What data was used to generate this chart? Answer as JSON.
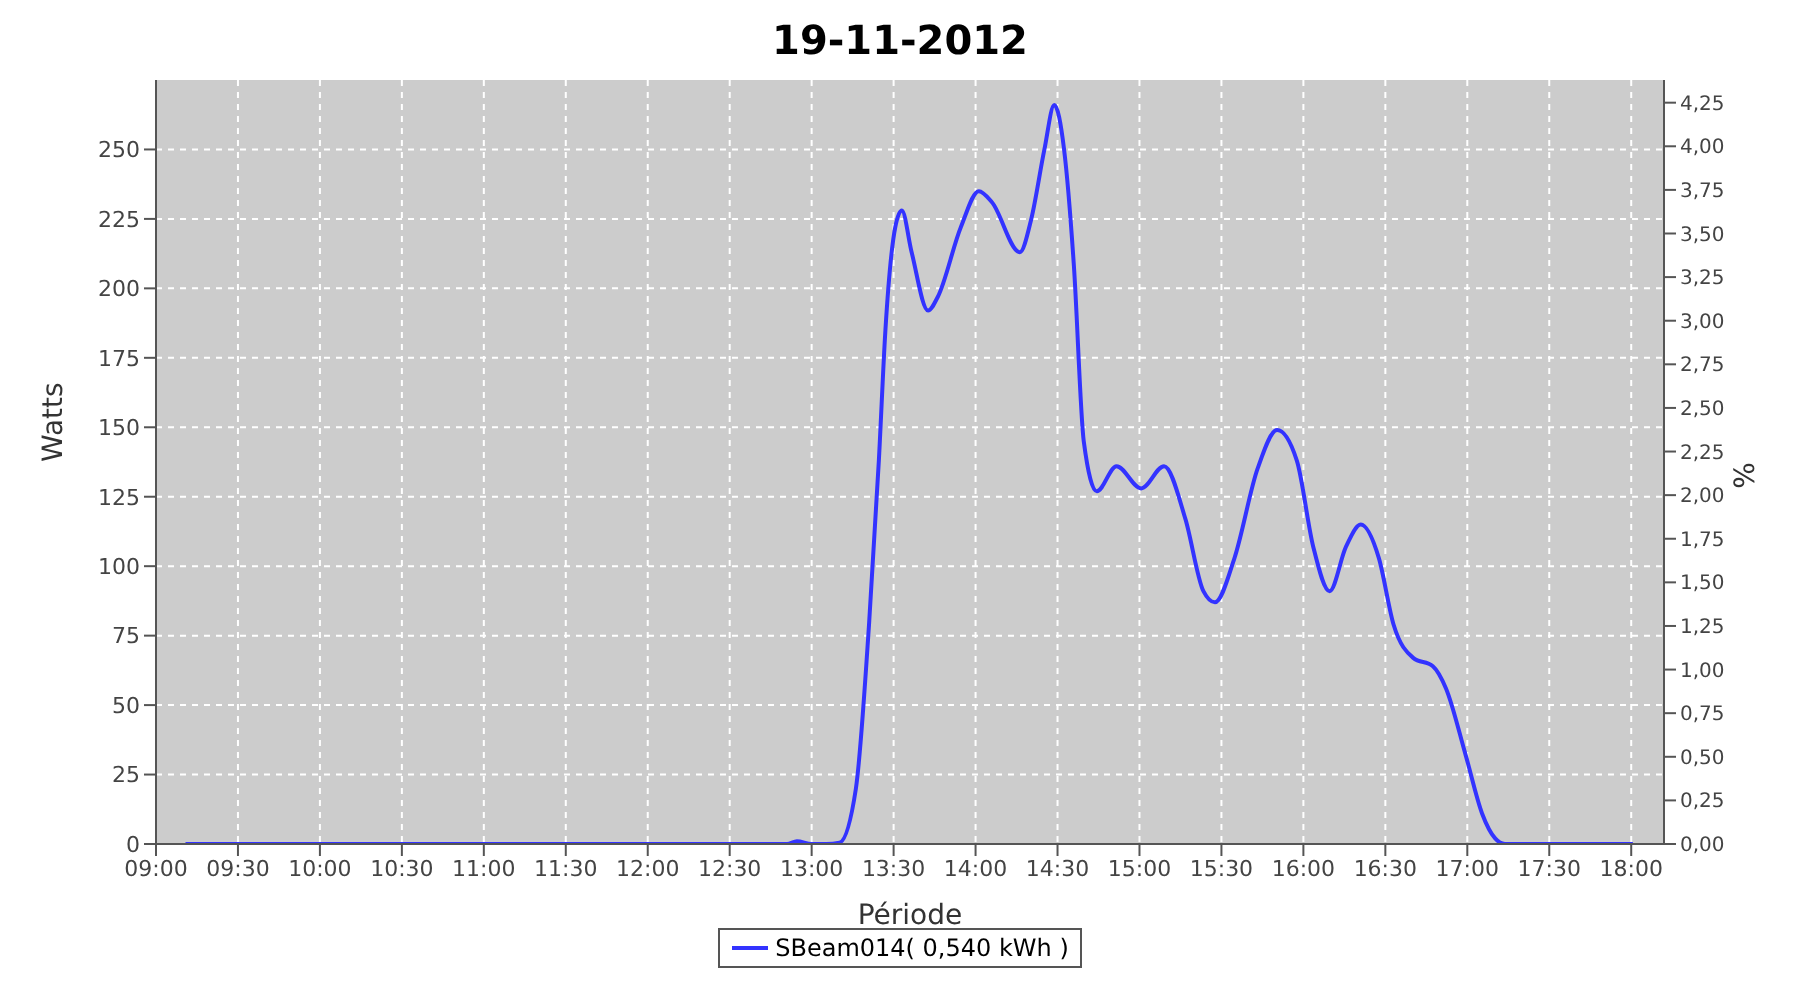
{
  "chart_data": {
    "type": "line",
    "title": "19-11-2012",
    "xlabel": "Période",
    "ylabel": "Watts",
    "y2label": "%",
    "x": [
      9.18,
      12.85,
      12.91,
      13.0,
      13.09,
      13.17,
      13.27,
      13.35,
      13.41,
      13.45,
      13.51,
      13.55,
      13.61,
      13.71,
      13.77,
      13.91,
      14.02,
      14.1,
      14.27,
      14.34,
      14.42,
      14.48,
      14.54,
      14.6,
      14.66,
      14.74,
      14.86,
      15.01,
      15.15,
      15.28,
      15.39,
      15.46,
      15.58,
      15.72,
      15.84,
      15.96,
      16.06,
      16.16,
      16.26,
      16.35,
      16.46,
      16.55,
      16.67,
      16.79,
      16.87,
      16.99,
      17.09,
      17.17,
      17.23,
      18.01
    ],
    "series": [
      {
        "name": "SBeam014( 0,540 kWh )",
        "color": "#3333ff",
        "values": [
          0,
          0,
          1,
          0,
          0,
          0.5,
          20,
          79,
          138,
          185,
          222,
          228,
          213,
          192,
          197,
          222,
          235,
          231,
          213,
          225,
          250,
          266,
          250,
          208,
          145,
          127,
          136,
          128,
          136,
          117,
          91,
          87,
          103,
          135,
          149,
          138,
          107,
          91,
          107,
          115,
          103,
          79,
          67,
          64,
          56,
          32,
          11,
          2,
          0,
          0
        ]
      }
    ],
    "xlim": [
      9,
      18.2
    ],
    "ylim": [
      0,
      275
    ],
    "y2lim": [
      0,
      4.38
    ],
    "xticks": [
      {
        "value": 9,
        "label": "09:00"
      },
      {
        "value": 9.5,
        "label": "09:30"
      },
      {
        "value": 10,
        "label": "10:00"
      },
      {
        "value": 10.5,
        "label": "10:30"
      },
      {
        "value": 11,
        "label": "11:00"
      },
      {
        "value": 11.5,
        "label": "11:30"
      },
      {
        "value": 12,
        "label": "12:00"
      },
      {
        "value": 12.5,
        "label": "12:30"
      },
      {
        "value": 13,
        "label": "13:00"
      },
      {
        "value": 13.5,
        "label": "13:30"
      },
      {
        "value": 14,
        "label": "14:00"
      },
      {
        "value": 14.5,
        "label": "14:30"
      },
      {
        "value": 15,
        "label": "15:00"
      },
      {
        "value": 15.5,
        "label": "15:30"
      },
      {
        "value": 16,
        "label": "16:00"
      },
      {
        "value": 16.5,
        "label": "16:30"
      },
      {
        "value": 17,
        "label": "17:00"
      },
      {
        "value": 17.5,
        "label": "17:30"
      },
      {
        "value": 18,
        "label": "18:00"
      }
    ],
    "yticks": [
      0,
      25,
      50,
      75,
      100,
      125,
      150,
      175,
      200,
      225,
      250
    ],
    "y2ticks": [
      {
        "value": 0,
        "label": "0,00"
      },
      {
        "value": 0.25,
        "label": "0,25"
      },
      {
        "value": 0.5,
        "label": "0,50"
      },
      {
        "value": 0.75,
        "label": "0,75"
      },
      {
        "value": 1,
        "label": "1,00"
      },
      {
        "value": 1.25,
        "label": "1,25"
      },
      {
        "value": 1.5,
        "label": "1,50"
      },
      {
        "value": 1.75,
        "label": "1,75"
      },
      {
        "value": 2,
        "label": "2,00"
      },
      {
        "value": 2.25,
        "label": "2,25"
      },
      {
        "value": 2.5,
        "label": "2,50"
      },
      {
        "value": 2.75,
        "label": "2,75"
      },
      {
        "value": 3,
        "label": "3,00"
      },
      {
        "value": 3.25,
        "label": "3,25"
      },
      {
        "value": 3.5,
        "label": "3,50"
      },
      {
        "value": 3.75,
        "label": "3,75"
      },
      {
        "value": 4,
        "label": "4,00"
      },
      {
        "value": 4.25,
        "label": "4,25"
      }
    ],
    "grid": true,
    "legend": "bottom"
  }
}
